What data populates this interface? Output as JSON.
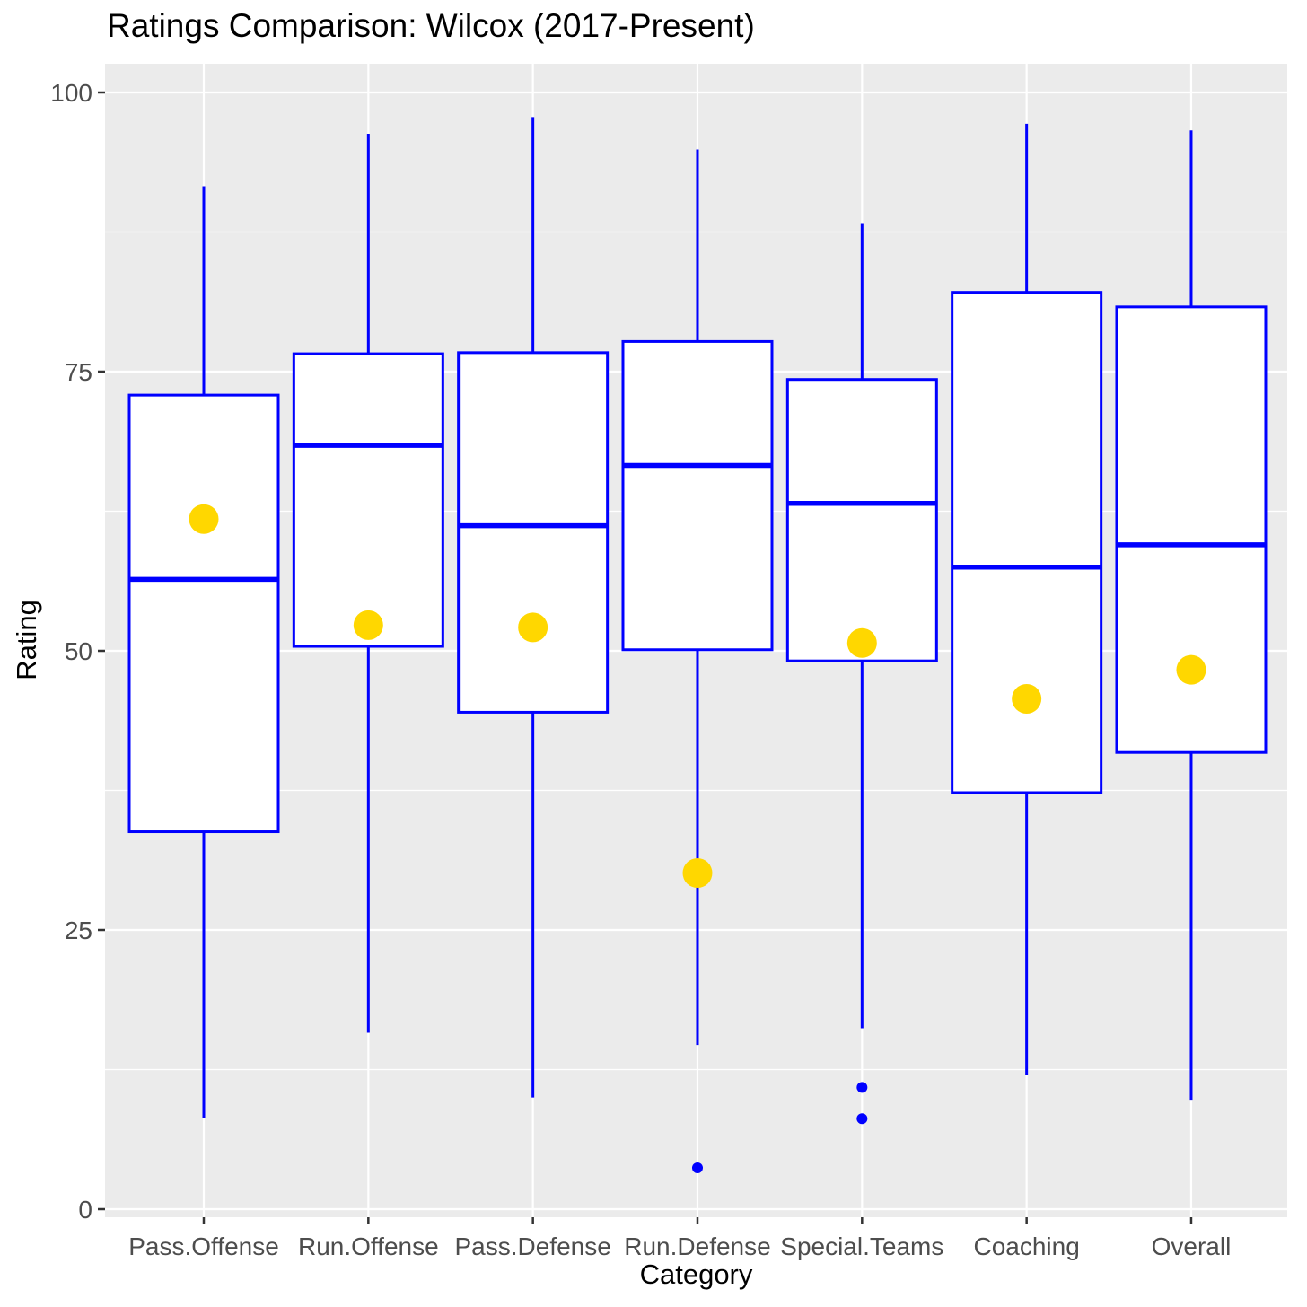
{
  "chart_data": {
    "type": "boxplot",
    "title": "Ratings Comparison: Wilcox (2017-Present)",
    "xlabel": "Category",
    "ylabel": "Rating",
    "ylim": [
      0,
      100
    ],
    "grid": true,
    "legend": "none",
    "y_major_ticks": [
      0,
      25,
      50,
      75,
      100
    ],
    "y_tick_labels": [
      "0",
      "25",
      "50",
      "75",
      "100"
    ],
    "y_minor_gridlines": [
      12.5,
      37.5,
      62.5,
      87.5
    ],
    "categories": [
      "Pass.Offense",
      "Run.Offense",
      "Pass.Defense",
      "Run.Defense",
      "Special.Teams",
      "Coaching",
      "Overall"
    ],
    "boxes": [
      {
        "category": "Pass.Offense",
        "whisker_low": 8.2,
        "q1": 33.8,
        "median": 56.4,
        "q3": 72.9,
        "whisker_high": 91.6,
        "highlight_point": 61.8,
        "outliers": []
      },
      {
        "category": "Run.Offense",
        "whisker_low": 15.8,
        "q1": 50.4,
        "median": 68.4,
        "q3": 76.6,
        "whisker_high": 96.3,
        "highlight_point": 52.3,
        "outliers": []
      },
      {
        "category": "Pass.Defense",
        "whisker_low": 10.0,
        "q1": 44.5,
        "median": 61.2,
        "q3": 76.7,
        "whisker_high": 97.8,
        "highlight_point": 52.1,
        "outliers": []
      },
      {
        "category": "Run.Defense",
        "whisker_low": 14.7,
        "q1": 50.1,
        "median": 66.6,
        "q3": 77.7,
        "whisker_high": 94.9,
        "highlight_point": 30.1,
        "outliers": [
          3.7
        ]
      },
      {
        "category": "Special.Teams",
        "whisker_low": 16.2,
        "q1": 49.1,
        "median": 63.2,
        "q3": 74.3,
        "whisker_high": 88.3,
        "highlight_point": 50.7,
        "outliers": [
          10.9,
          8.1
        ]
      },
      {
        "category": "Coaching",
        "whisker_low": 12.0,
        "q1": 37.3,
        "median": 57.5,
        "q3": 82.1,
        "whisker_high": 97.2,
        "highlight_point": 45.7,
        "outliers": []
      },
      {
        "category": "Overall",
        "whisker_low": 9.8,
        "q1": 40.9,
        "median": 59.5,
        "q3": 80.8,
        "whisker_high": 96.6,
        "highlight_point": 48.3,
        "outliers": []
      }
    ],
    "colors": {
      "box_stroke": "#0000FF",
      "box_fill": "#FFFFFF",
      "median": "#0000FF",
      "outlier": "#0000FF",
      "highlight_point": "#FFD700",
      "panel_background": "#EBEBEB",
      "gridline": "#FFFFFF",
      "tick_label": "#4D4D4D",
      "tick_mark": "#333333",
      "text": "#000000",
      "figure_background": "#FFFFFF"
    }
  }
}
